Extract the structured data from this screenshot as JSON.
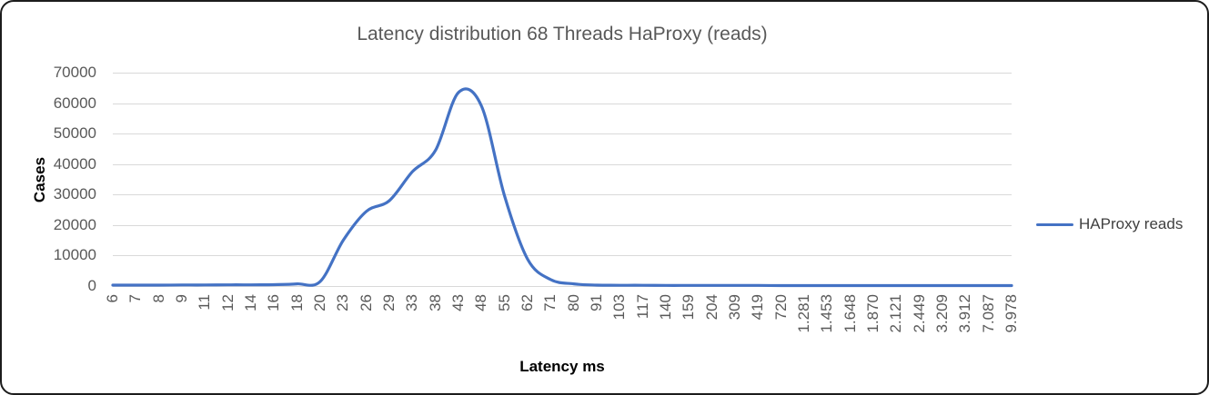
{
  "window": {
    "background": "#ffffff",
    "border_color": "#1c1c1c"
  },
  "chart_data": {
    "type": "line",
    "title": "Latency distribution 68 Threads HaProxy (reads)",
    "xlabel": "Latency ms",
    "ylabel": "Cases",
    "ylim": [
      0,
      70000
    ],
    "ytick_step": 10000,
    "yticks": [
      "0",
      "10000",
      "20000",
      "30000",
      "40000",
      "50000",
      "60000",
      "70000"
    ],
    "grid": true,
    "legend_position": "right",
    "x_labels_rotation": -90,
    "categories": [
      "6",
      "7",
      "8",
      "9",
      "11",
      "12",
      "14",
      "16",
      "18",
      "20",
      "23",
      "26",
      "29",
      "33",
      "38",
      "43",
      "48",
      "55",
      "62",
      "71",
      "80",
      "91",
      "103",
      "117",
      "140",
      "159",
      "204",
      "309",
      "419",
      "720",
      "1.281",
      "1.453",
      "1.648",
      "1.870",
      "2.121",
      "2.449",
      "3.209",
      "3.912",
      "7.087",
      "9.978"
    ],
    "series": [
      {
        "name": "HAProxy reads",
        "color": "#4472C4",
        "smooth": true,
        "values": [
          300,
          300,
          300,
          350,
          350,
          400,
          400,
          450,
          700,
          1500,
          15000,
          24500,
          28000,
          37500,
          44500,
          63500,
          59000,
          29500,
          8800,
          2100,
          700,
          300,
          250,
          250,
          200,
          200,
          200,
          200,
          200,
          150,
          150,
          150,
          150,
          150,
          150,
          150,
          150,
          150,
          150,
          150
        ]
      }
    ],
    "colors": {
      "gridline": "#d9d9d9",
      "tick_text": "#595959",
      "title_text": "#595959",
      "axis_title_text": "#000000",
      "legend_text": "#404040"
    }
  }
}
